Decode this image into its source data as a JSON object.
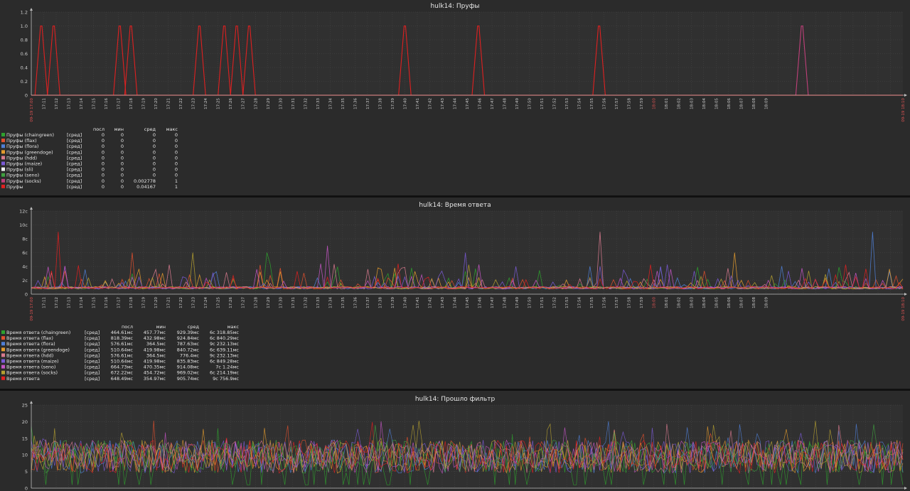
{
  "colors": {
    "bg": "#2b2b2b",
    "plot_bg": "#303030",
    "grid": "#484848",
    "axis": "#bdbdbd",
    "text": "#e6e6e6",
    "tick": "#cfcfcf",
    "red_tick": "#e05454",
    "separator": "#111111"
  },
  "x_ticks": [
    "17:11",
    "17:12",
    "17:13",
    "17:14",
    "17:15",
    "17:16",
    "17:17",
    "17:18",
    "17:19",
    "17:20",
    "17:21",
    "17:22",
    "17:23",
    "17:24",
    "17:25",
    "17:26",
    "17:27",
    "17:28",
    "17:29",
    "17:30",
    "17:31",
    "17:32",
    "17:33",
    "17:34",
    "17:35",
    "17:36",
    "17:37",
    "17:38",
    "17:39",
    "17:40",
    "17:41",
    "17:42",
    "17:43",
    "17:44",
    "17:45",
    "17:46",
    "17:47",
    "17:48",
    "17:49",
    "17:50",
    "17:51",
    "17:52",
    "17:53",
    "17:54",
    "17:55",
    "17:56",
    "17:57",
    "17:58",
    "17:59",
    "18:00",
    "18:01",
    "18:02",
    "18:03",
    "18:04",
    "18:05",
    "18:06",
    "18:07",
    "18:08",
    "18:09"
  ],
  "x_start_label": "09-19 17:00",
  "x_end_label": "09-19 18:10",
  "highlight_tick": "18:00",
  "legend_agg": "[сред]",
  "chart_data": [
    {
      "type": "line",
      "title": "hulk14: Пруфы",
      "y_ticks": [
        "0",
        "0.2",
        "0.4",
        "0.6",
        "0.8",
        "1.0",
        "1.2"
      ],
      "ylim": [
        0,
        1.2
      ],
      "legend_columns": [
        "посл",
        "мин",
        "сред",
        "макс"
      ],
      "series": [
        {
          "name": "Пруфы (chaingreen)",
          "color": "#2ea02e",
          "stats": [
            "0",
            "0",
            "0",
            "0"
          ]
        },
        {
          "name": "Пруфы (flax)",
          "color": "#e0502e",
          "stats": [
            "0",
            "0",
            "0",
            "0"
          ]
        },
        {
          "name": "Пруфы (flora)",
          "color": "#4f7fd6",
          "stats": [
            "0",
            "0",
            "0",
            "0"
          ]
        },
        {
          "name": "Пруфы (greendoge)",
          "color": "#e39b2e",
          "stats": [
            "0",
            "0",
            "0",
            "0"
          ]
        },
        {
          "name": "Пруфы (hdd)",
          "color": "#d97a8f",
          "stats": [
            "0",
            "0",
            "0",
            "0"
          ]
        },
        {
          "name": "Пруфы (maize)",
          "color": "#7a5ad6",
          "stats": [
            "0",
            "0",
            "0",
            "0"
          ]
        },
        {
          "name": "Пруфы (sli)",
          "color": "#f2f2f2",
          "stats": [
            "0",
            "0",
            "0",
            "0"
          ]
        },
        {
          "name": "Пруфы (seno)",
          "color": "#3fa03f",
          "stats": [
            "0",
            "0",
            "0",
            "0"
          ]
        },
        {
          "name": "Пруфы (socks)",
          "color": "#c0407a",
          "stats": [
            "0",
            "0",
            "0.002778",
            "1"
          ]
        },
        {
          "name": "Пруфы",
          "color": "#e02020",
          "stats": [
            "0",
            "0",
            "0.04167",
            "1"
          ]
        }
      ],
      "spikes": [
        {
          "series": "Пруфы (socks)",
          "t": 61.9,
          "value": 1
        },
        {
          "series": "Пруфы",
          "t": 0.8,
          "value": 1
        },
        {
          "series": "Пруфы",
          "t": 1.8,
          "value": 1
        },
        {
          "series": "Пруфы",
          "t": 7.1,
          "value": 1
        },
        {
          "series": "Пруфы",
          "t": 8.0,
          "value": 1
        },
        {
          "series": "Пруфы",
          "t": 13.5,
          "value": 1
        },
        {
          "series": "Пруфы",
          "t": 15.5,
          "value": 1
        },
        {
          "series": "Пруфы",
          "t": 16.5,
          "value": 1
        },
        {
          "series": "Пруфы",
          "t": 17.5,
          "value": 1
        },
        {
          "series": "Пруфы",
          "t": 30.0,
          "value": 1
        },
        {
          "series": "Пруфы",
          "t": 35.9,
          "value": 1
        },
        {
          "series": "Пруфы",
          "t": 45.6,
          "value": 1
        }
      ]
    },
    {
      "type": "line",
      "title": "hulk14: Время ответа",
      "y_ticks": [
        "0",
        "2c",
        "4c",
        "6c",
        "8c",
        "10c",
        "12c"
      ],
      "ylim": [
        0,
        12
      ],
      "legend_columns": [
        "посл",
        "мин",
        "сред",
        "макс"
      ],
      "series": [
        {
          "name": "Время ответа (chaingreen)",
          "color": "#2ea02e",
          "stats": [
            "464.61мс",
            "457.77мс",
            "929.39мс",
            "6c 318.85мс"
          ]
        },
        {
          "name": "Время ответа (flax)",
          "color": "#e0502e",
          "stats": [
            "818.39мс",
            "432.98мс",
            "924.84мс",
            "6c 840.29мс"
          ]
        },
        {
          "name": "Время ответа (flora)",
          "color": "#4f7fd6",
          "stats": [
            "576.61мс",
            "364.5мс",
            "787.63мс",
            "9c 232.13мс"
          ]
        },
        {
          "name": "Время ответа (greendoge)",
          "color": "#e39b2e",
          "stats": [
            "510.64мс",
            "419.98мс",
            "840.72мс",
            "6c 639.11мс"
          ]
        },
        {
          "name": "Время ответа (hdd)",
          "color": "#d97a8f",
          "stats": [
            "576.61мс",
            "364.5мс",
            "776.4мс",
            "9c 232.13мс"
          ]
        },
        {
          "name": "Время ответа (maize)",
          "color": "#7a5ad6",
          "stats": [
            "510.64мс",
            "419.98мс",
            "835.83мс",
            "6c 849.28мс"
          ]
        },
        {
          "name": "Время ответа (seno)",
          "color": "#c455c4",
          "stats": [
            "664.73мс",
            "470.35мс",
            "914.08мс",
            "7c 1.24мс"
          ]
        },
        {
          "name": "Время ответа (socks)",
          "color": "#b5a030",
          "stats": [
            "672.22мс",
            "454.72мс",
            "969.02мс",
            "6c 214.19мс"
          ]
        },
        {
          "name": "Время ответа",
          "color": "#e02020",
          "stats": [
            "648.49мс",
            "354.97мс",
            "905.74мс",
            "9c 756.9мс"
          ]
        }
      ],
      "baseline": 0.75
    },
    {
      "type": "line",
      "title": "hulk14: Прошло фильтр",
      "y_ticks": [
        "0",
        "5",
        "10",
        "15",
        "20",
        "25"
      ],
      "ylim": [
        0,
        25
      ],
      "mean": 9.5
    }
  ]
}
